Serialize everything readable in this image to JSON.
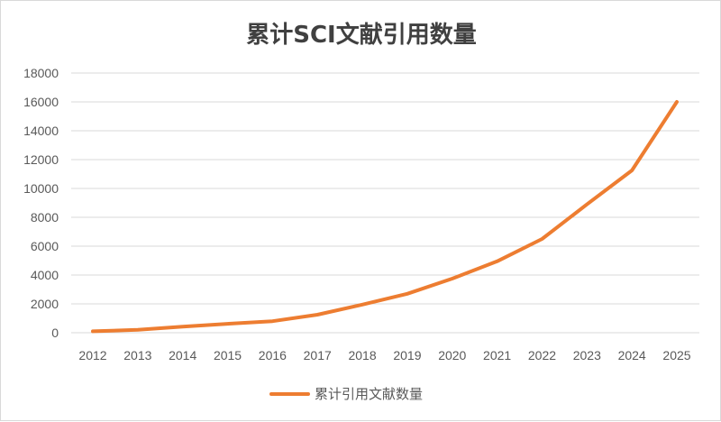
{
  "chart_data": {
    "type": "line",
    "title": "累计SCI文献引用数量",
    "xlabel": "",
    "ylabel": "",
    "categories": [
      "2012",
      "2013",
      "2014",
      "2015",
      "2016",
      "2017",
      "2018",
      "2019",
      "2020",
      "2021",
      "2022",
      "2023",
      "2024",
      "2025"
    ],
    "series": [
      {
        "name": "累计引用文献数量",
        "color": "#ED7D31",
        "values": [
          100,
          200,
          420,
          620,
          800,
          1250,
          1950,
          2700,
          3750,
          4950,
          6500,
          8900,
          11250,
          16000
        ]
      }
    ],
    "ylim": [
      0,
      18000
    ],
    "yticks": [
      0,
      2000,
      4000,
      6000,
      8000,
      10000,
      12000,
      14000,
      16000,
      18000
    ],
    "grid": true,
    "legend_position": "bottom"
  }
}
